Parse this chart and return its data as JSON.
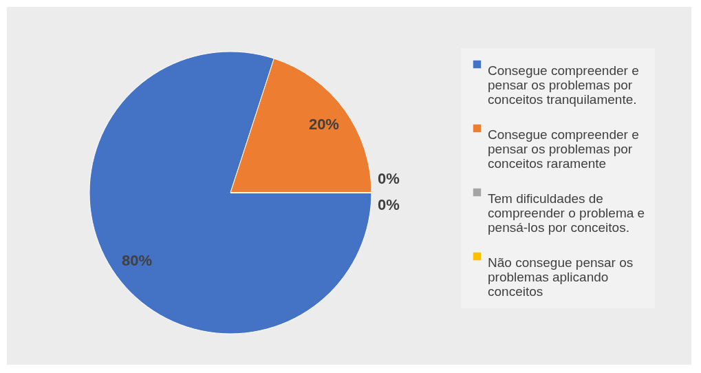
{
  "chart_data": {
    "type": "pie",
    "categories": [
      "Consegue compreender e pensar os problemas por conceitos tranquilamente.",
      "Consegue compreender e pensar os problemas por conceitos raramente",
      "Tem dificuldades de compreender o problema e pensá-los por conceitos.",
      "Não consegue pensar os problemas aplicando conceitos"
    ],
    "values": [
      80,
      20,
      0,
      0
    ],
    "colors": [
      "#4472c4",
      "#ed7d31",
      "#a5a5a5",
      "#ffc000"
    ],
    "value_labels": [
      "80%",
      "20%",
      "0%",
      "0%"
    ],
    "legend": "right"
  }
}
